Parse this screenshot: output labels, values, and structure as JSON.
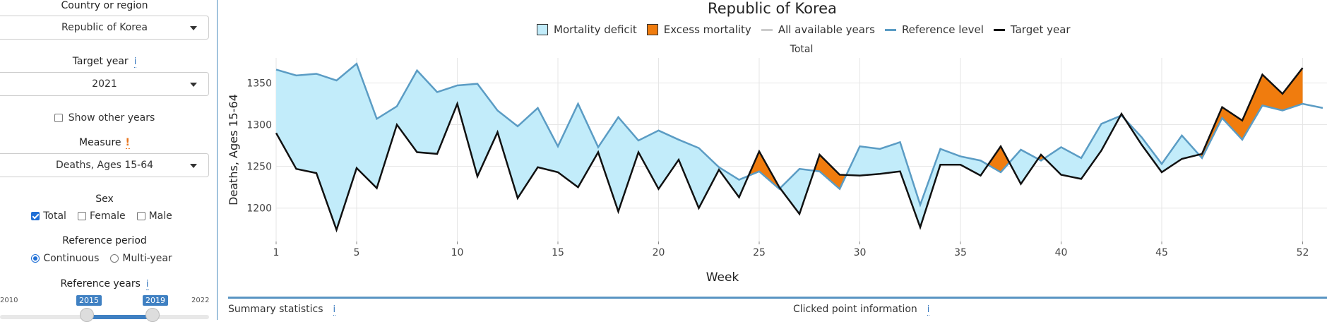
{
  "sidebar": {
    "country_label": "Country or region",
    "country_value": "Republic of Korea",
    "target_year_label": "Target year",
    "target_year_info": "i",
    "target_year_value": "2021",
    "show_other_years": "Show other years",
    "measure_label": "Measure",
    "measure_warn": "!",
    "measure_value": "Deaths, Ages 15-64",
    "sex_label": "Sex",
    "sex_options": [
      {
        "label": "Total",
        "checked": true
      },
      {
        "label": "Female",
        "checked": false
      },
      {
        "label": "Male",
        "checked": false
      }
    ],
    "ref_period_label": "Reference period",
    "ref_period_options": [
      {
        "label": "Continuous",
        "selected": true
      },
      {
        "label": "Multi-year",
        "selected": false
      }
    ],
    "ref_years_label": "Reference years",
    "ref_years_info": "i",
    "slider": {
      "min": "2010",
      "max": "2022",
      "from": "2015",
      "to": "2019"
    }
  },
  "header": {
    "title": "Republic of Korea"
  },
  "legend": {
    "deficit": "Mortality deficit",
    "excess": "Excess mortality",
    "all_years": "All available years",
    "reference": "Reference level",
    "target": "Target year"
  },
  "colors": {
    "deficit": "#c2ecfa",
    "excess": "#f07c0e",
    "reference": "#5b9cc4",
    "target": "#111111",
    "all_years": "#cccccc"
  },
  "chart_data": {
    "type": "area",
    "title": "Total",
    "xlabel": "Week",
    "ylabel": "Deaths, Ages 15-64",
    "xlim": [
      1,
      53
    ],
    "ylim": [
      1160,
      1380
    ],
    "x_ticks": [
      1,
      5,
      10,
      15,
      20,
      25,
      30,
      35,
      40,
      45,
      52
    ],
    "y_ticks": [
      1200,
      1250,
      1300,
      1350
    ],
    "grid": true,
    "legend_position": "top",
    "weeks": [
      1,
      2,
      3,
      4,
      5,
      6,
      7,
      8,
      9,
      10,
      11,
      12,
      13,
      14,
      15,
      16,
      17,
      18,
      19,
      20,
      21,
      22,
      23,
      24,
      25,
      26,
      27,
      28,
      29,
      30,
      31,
      32,
      33,
      34,
      35,
      36,
      37,
      38,
      39,
      40,
      41,
      42,
      43,
      44,
      45,
      46,
      47,
      48,
      49,
      50,
      51,
      52,
      53
    ],
    "series": [
      {
        "name": "Reference level",
        "values": [
          1366,
          1359,
          1361,
          1353,
          1373,
          1307,
          1322,
          1365,
          1339,
          1347,
          1349,
          1317,
          1298,
          1320,
          1274,
          1325,
          1273,
          1309,
          1281,
          1293,
          1282,
          1272,
          1249,
          1234,
          1244,
          1223,
          1247,
          1244,
          1223,
          1274,
          1271,
          1279,
          1204,
          1271,
          1262,
          1257,
          1243,
          1270,
          1257,
          1273,
          1260,
          1301,
          1311,
          1285,
          1253,
          1287,
          1260,
          1308,
          1282,
          1323,
          1317,
          1325,
          1320
        ]
      },
      {
        "name": "Target year",
        "values": [
          1290,
          1247,
          1242,
          1174,
          1248,
          1224,
          1300,
          1267,
          1265,
          1325,
          1238,
          1291,
          1212,
          1249,
          1243,
          1225,
          1267,
          1196,
          1267,
          1223,
          1258,
          1200,
          1246,
          1213,
          1268,
          1225,
          1193,
          1264,
          1240,
          1239,
          1241,
          1244,
          1177,
          1252,
          1252,
          1239,
          1274,
          1229,
          1264,
          1240,
          1235,
          1269,
          1313,
          1276,
          1243,
          1259,
          1265,
          1321,
          1305,
          1360,
          1337,
          1368,
          null
        ]
      }
    ]
  },
  "bottom": {
    "summary_label": "Summary statistics",
    "summary_info": "i",
    "clicked_label": "Clicked point information",
    "clicked_info": "i"
  }
}
